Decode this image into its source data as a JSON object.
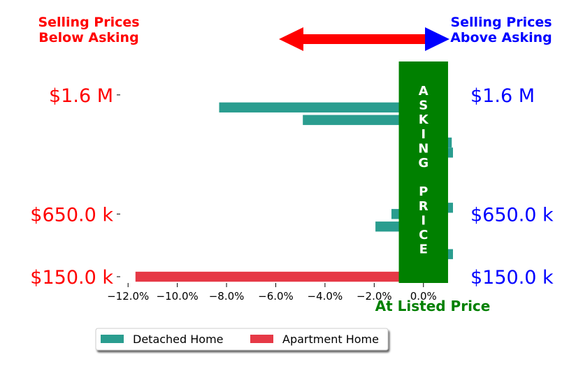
{
  "chart_data": {
    "type": "bar",
    "orientation": "horizontal",
    "xlim": [
      -13.0,
      1.2
    ],
    "x_ticks": [
      -12,
      -10,
      -8,
      -6,
      -4,
      -2,
      0
    ],
    "x_tick_labels": [
      "−12.0%",
      "−10.0%",
      "−8.0%",
      "−6.0%",
      "−4.0%",
      "−2.0%",
      "0.0%"
    ],
    "xlabel": "At Listed Price",
    "ylim": [
      100000,
      1900000
    ],
    "left_y_ticks": [
      {
        "value": 150000,
        "label": "$150.0 k"
      },
      {
        "value": 650000,
        "label": "$650.0 k"
      },
      {
        "value": 1600000,
        "label": "$1.6 M"
      }
    ],
    "right_y_ticks": [
      {
        "value": 150000,
        "label": "$150.0 k"
      },
      {
        "value": 650000,
        "label": "$650.0 k"
      },
      {
        "value": 1600000,
        "label": "$1.6 M"
      }
    ],
    "bar_height": 80000,
    "series": [
      {
        "name": "Detached Home",
        "color": "#2a9d8f",
        "bars": [
          {
            "price": 1500000,
            "value": -8.3
          },
          {
            "price": 1400000,
            "value": -4.9
          },
          {
            "price": 1220000,
            "value": 1.15
          },
          {
            "price": 1140000,
            "value": 1.2
          },
          {
            "price": 650000,
            "value": -1.3
          },
          {
            "price": 700000,
            "value": 1.2
          },
          {
            "price": 550000,
            "value": -1.95
          },
          {
            "price": 330000,
            "value": 1.2
          }
        ]
      },
      {
        "name": "Apartment Home",
        "color": "#e63946",
        "bars": [
          {
            "price": 150000,
            "value": -11.7
          }
        ]
      }
    ],
    "asking_band": {
      "x_range": [
        -1.0,
        1.0
      ],
      "color": "#008000",
      "letters": [
        "A",
        "S",
        "K",
        "I",
        "N",
        "G",
        "",
        "P",
        "R",
        "I",
        "C",
        "E"
      ]
    },
    "left_header": {
      "lines": [
        "Selling Prices",
        "Below Asking"
      ],
      "color": "#ff0000"
    },
    "right_header": {
      "lines": [
        "Selling Prices",
        "Above Asking"
      ],
      "color": "#0000ff"
    },
    "arrow": {
      "left_color": "#ff0000",
      "right_color": "#0000ff"
    },
    "left_label_color": "#ff0000",
    "right_label_color": "#0000ff",
    "xlabel_color": "#008000",
    "legend": {
      "placement": "bottom-center",
      "entries": [
        {
          "name": "Detached Home",
          "color": "#2a9d8f"
        },
        {
          "name": "Apartment Home",
          "color": "#e63946"
        }
      ]
    }
  }
}
